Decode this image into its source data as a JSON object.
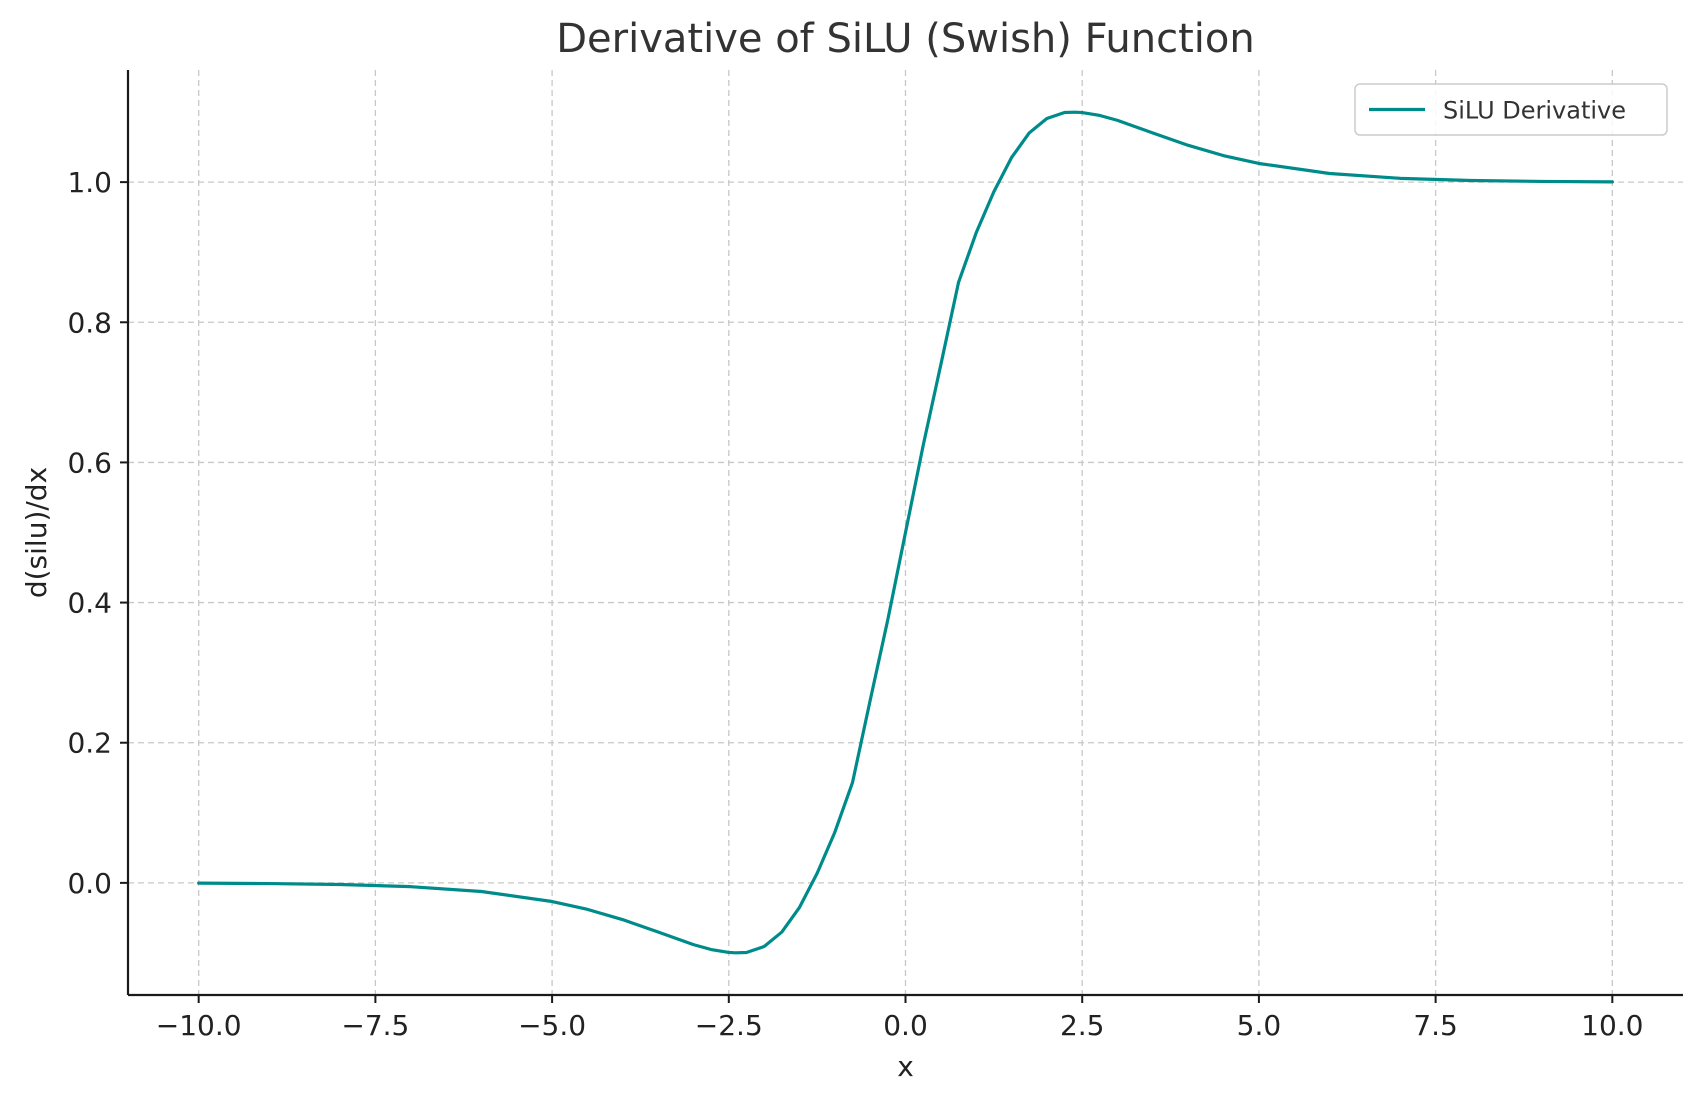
{
  "chart_data": {
    "type": "line",
    "title": "Derivative of SiLU (Swish) Function",
    "xlabel": "x",
    "ylabel": "d(silu)/dx",
    "xlim": [
      -11.0,
      11.0
    ],
    "ylim": [
      -0.16,
      1.16
    ],
    "grid": true,
    "legend_position": "top-right",
    "x_ticks": [
      -10.0,
      -7.5,
      -5.0,
      -2.5,
      0.0,
      2.5,
      5.0,
      7.5,
      10.0
    ],
    "x_tick_labels": [
      "−10.0",
      "−7.5",
      "−5.0",
      "−2.5",
      "0.0",
      "2.5",
      "5.0",
      "7.5",
      "10.0"
    ],
    "y_ticks": [
      0.0,
      0.2,
      0.4,
      0.6,
      0.8,
      1.0
    ],
    "y_tick_labels": [
      "0.0",
      "0.2",
      "0.4",
      "0.6",
      "0.8",
      "1.0"
    ],
    "series": [
      {
        "name": "SiLU Derivative",
        "color": "#008b8b",
        "x": [
          -10,
          -9,
          -8,
          -7,
          -6,
          -5,
          -4.5,
          -4,
          -3.5,
          -3,
          -2.75,
          -2.5,
          -2.4,
          -2.25,
          -2,
          -1.75,
          -1.5,
          -1.25,
          -1,
          -0.75,
          -0.5,
          -0.25,
          0,
          0.25,
          0.5,
          0.75,
          1,
          1.25,
          1.5,
          1.75,
          2,
          2.25,
          2.4,
          2.5,
          2.75,
          3,
          3.5,
          4,
          4.5,
          5,
          6,
          7,
          8,
          9,
          10
        ],
        "y": [
          -0.0004,
          -0.001,
          -0.0023,
          -0.0054,
          -0.0123,
          -0.0266,
          -0.0378,
          -0.0525,
          -0.0701,
          -0.0881,
          -0.0951,
          -0.0993,
          -0.0998,
          -0.0994,
          -0.0908,
          -0.0702,
          -0.035,
          0.0138,
          0.0723,
          0.1432,
          0.2604,
          0.3758,
          0.5,
          0.6242,
          0.7396,
          0.8568,
          0.9277,
          0.9862,
          1.035,
          1.0702,
          1.0908,
          1.0994,
          1.0998,
          1.0993,
          1.0951,
          1.0881,
          1.0701,
          1.0525,
          1.0378,
          1.0266,
          1.0123,
          1.0054,
          1.0023,
          1.001,
          1.0004
        ]
      }
    ]
  }
}
